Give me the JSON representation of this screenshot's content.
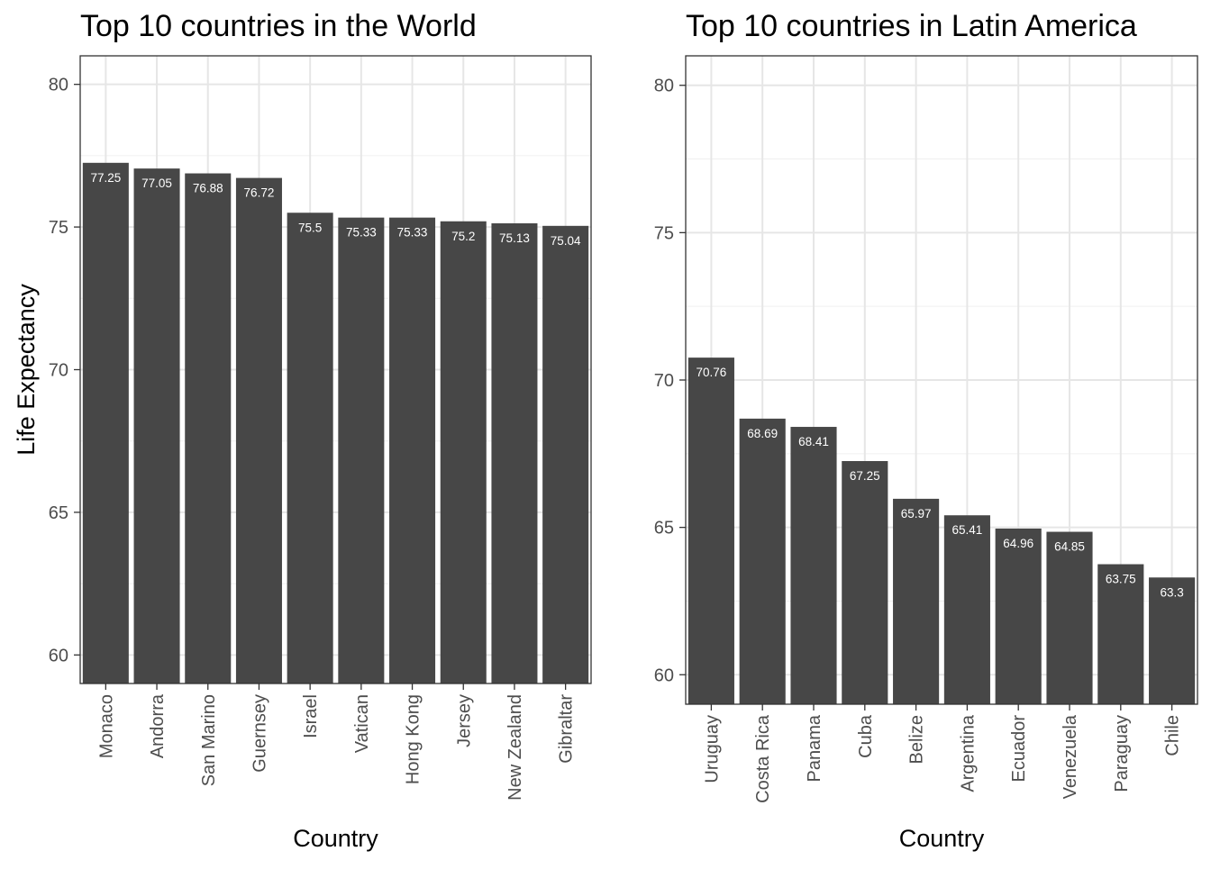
{
  "chart_data": [
    {
      "type": "bar",
      "title": "Top 10 countries in the World",
      "xlabel": "Country",
      "ylabel": "Life Expectancy",
      "categories": [
        "Monaco",
        "Andorra",
        "San Marino",
        "Guernsey",
        "Israel",
        "Vatican",
        "Hong Kong",
        "Jersey",
        "New Zealand",
        "Gibraltar"
      ],
      "values": [
        77.25,
        77.05,
        76.88,
        76.72,
        75.5,
        75.33,
        75.33,
        75.2,
        75.13,
        75.04
      ],
      "value_labels": [
        "77.25",
        "77.05",
        "76.88",
        "76.72",
        "75.5",
        "75.33",
        "75.33",
        "75.2",
        "75.13",
        "75.04"
      ],
      "ylim": [
        59,
        81
      ],
      "yticks": [
        60,
        65,
        70,
        75,
        80
      ],
      "grid": true,
      "bar_color": "#474747"
    },
    {
      "type": "bar",
      "title": "Top 10 countries in Latin America",
      "xlabel": "Country",
      "ylabel": "",
      "categories": [
        "Uruguay",
        "Costa Rica",
        "Panama",
        "Cuba",
        "Belize",
        "Argentina",
        "Ecuador",
        "Venezuela",
        "Paraguay",
        "Chile"
      ],
      "values": [
        70.76,
        68.69,
        68.41,
        67.25,
        65.97,
        65.41,
        64.96,
        64.85,
        63.75,
        63.3
      ],
      "value_labels": [
        "70.76",
        "68.69",
        "68.41",
        "67.25",
        "65.97",
        "65.41",
        "64.96",
        "64.85",
        "63.75",
        "63.3"
      ],
      "ylim": [
        59,
        81
      ],
      "yticks": [
        60,
        65,
        70,
        75,
        80
      ],
      "grid": true,
      "bar_color": "#474747"
    }
  ]
}
